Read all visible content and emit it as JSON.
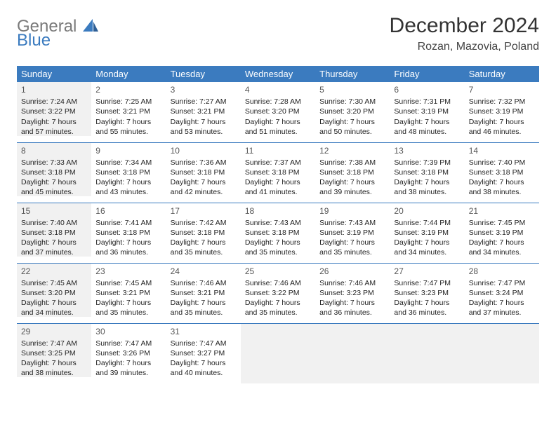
{
  "logo": {
    "word1": "General",
    "word2": "Blue",
    "gray": "#7a7a7a",
    "blue": "#3b7bbf"
  },
  "title": "December 2024",
  "location": "Rozan, Mazovia, Poland",
  "header_bg": "#3b7bbf",
  "header_text": "#ffffff",
  "shade_bg": "#f1f1f1",
  "row_border": "#3b7bbf",
  "day_headers": [
    "Sunday",
    "Monday",
    "Tuesday",
    "Wednesday",
    "Thursday",
    "Friday",
    "Saturday"
  ],
  "weeks": [
    [
      {
        "n": 1,
        "sr": "7:24 AM",
        "ss": "3:22 PM",
        "dl": "7 hours and 57 minutes."
      },
      {
        "n": 2,
        "sr": "7:25 AM",
        "ss": "3:21 PM",
        "dl": "7 hours and 55 minutes."
      },
      {
        "n": 3,
        "sr": "7:27 AM",
        "ss": "3:21 PM",
        "dl": "7 hours and 53 minutes."
      },
      {
        "n": 4,
        "sr": "7:28 AM",
        "ss": "3:20 PM",
        "dl": "7 hours and 51 minutes."
      },
      {
        "n": 5,
        "sr": "7:30 AM",
        "ss": "3:20 PM",
        "dl": "7 hours and 50 minutes."
      },
      {
        "n": 6,
        "sr": "7:31 PM",
        "ss": "3:19 PM",
        "dl": "7 hours and 48 minutes."
      },
      {
        "n": 7,
        "sr": "7:32 PM",
        "ss": "3:19 PM",
        "dl": "7 hours and 46 minutes."
      }
    ],
    [
      {
        "n": 8,
        "sr": "7:33 AM",
        "ss": "3:18 PM",
        "dl": "7 hours and 45 minutes."
      },
      {
        "n": 9,
        "sr": "7:34 AM",
        "ss": "3:18 PM",
        "dl": "7 hours and 43 minutes."
      },
      {
        "n": 10,
        "sr": "7:36 AM",
        "ss": "3:18 PM",
        "dl": "7 hours and 42 minutes."
      },
      {
        "n": 11,
        "sr": "7:37 AM",
        "ss": "3:18 PM",
        "dl": "7 hours and 41 minutes."
      },
      {
        "n": 12,
        "sr": "7:38 AM",
        "ss": "3:18 PM",
        "dl": "7 hours and 39 minutes."
      },
      {
        "n": 13,
        "sr": "7:39 PM",
        "ss": "3:18 PM",
        "dl": "7 hours and 38 minutes."
      },
      {
        "n": 14,
        "sr": "7:40 PM",
        "ss": "3:18 PM",
        "dl": "7 hours and 38 minutes."
      }
    ],
    [
      {
        "n": 15,
        "sr": "7:40 AM",
        "ss": "3:18 PM",
        "dl": "7 hours and 37 minutes."
      },
      {
        "n": 16,
        "sr": "7:41 AM",
        "ss": "3:18 PM",
        "dl": "7 hours and 36 minutes."
      },
      {
        "n": 17,
        "sr": "7:42 AM",
        "ss": "3:18 PM",
        "dl": "7 hours and 35 minutes."
      },
      {
        "n": 18,
        "sr": "7:43 AM",
        "ss": "3:18 PM",
        "dl": "7 hours and 35 minutes."
      },
      {
        "n": 19,
        "sr": "7:43 AM",
        "ss": "3:19 PM",
        "dl": "7 hours and 35 minutes."
      },
      {
        "n": 20,
        "sr": "7:44 PM",
        "ss": "3:19 PM",
        "dl": "7 hours and 34 minutes."
      },
      {
        "n": 21,
        "sr": "7:45 PM",
        "ss": "3:19 PM",
        "dl": "7 hours and 34 minutes."
      }
    ],
    [
      {
        "n": 22,
        "sr": "7:45 AM",
        "ss": "3:20 PM",
        "dl": "7 hours and 34 minutes."
      },
      {
        "n": 23,
        "sr": "7:45 AM",
        "ss": "3:21 PM",
        "dl": "7 hours and 35 minutes."
      },
      {
        "n": 24,
        "sr": "7:46 AM",
        "ss": "3:21 PM",
        "dl": "7 hours and 35 minutes."
      },
      {
        "n": 25,
        "sr": "7:46 AM",
        "ss": "3:22 PM",
        "dl": "7 hours and 35 minutes."
      },
      {
        "n": 26,
        "sr": "7:46 AM",
        "ss": "3:23 PM",
        "dl": "7 hours and 36 minutes."
      },
      {
        "n": 27,
        "sr": "7:47 PM",
        "ss": "3:23 PM",
        "dl": "7 hours and 36 minutes."
      },
      {
        "n": 28,
        "sr": "7:47 PM",
        "ss": "3:24 PM",
        "dl": "7 hours and 37 minutes."
      }
    ],
    [
      {
        "n": 29,
        "sr": "7:47 AM",
        "ss": "3:25 PM",
        "dl": "7 hours and 38 minutes."
      },
      {
        "n": 30,
        "sr": "7:47 AM",
        "ss": "3:26 PM",
        "dl": "7 hours and 39 minutes."
      },
      {
        "n": 31,
        "sr": "7:47 AM",
        "ss": "3:27 PM",
        "dl": "7 hours and 40 minutes."
      },
      null,
      null,
      null,
      null
    ]
  ],
  "labels": {
    "sunrise": "Sunrise: ",
    "sunset": "Sunset: ",
    "daylight": "Daylight: "
  }
}
